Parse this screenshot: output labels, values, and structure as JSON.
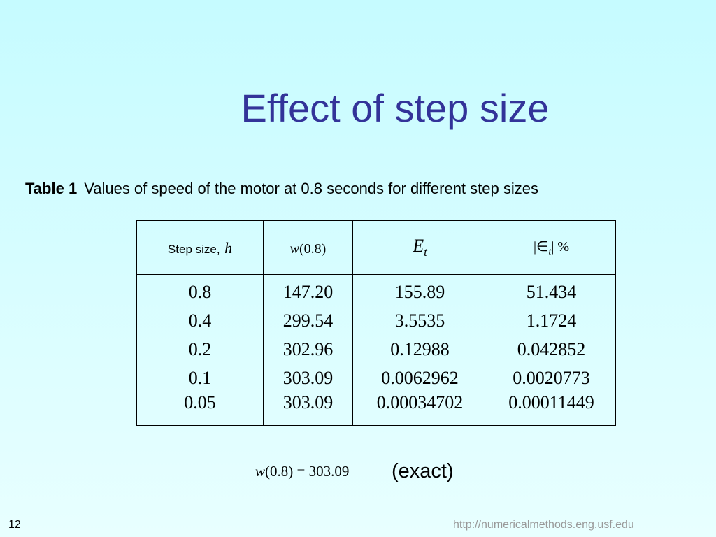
{
  "title": "Effect of step size",
  "caption": {
    "label": "Table 1",
    "text": "Values of speed of the motor at 0.8 seconds for different step sizes"
  },
  "table": {
    "columns": [
      {
        "label": "Step size,",
        "symbol": "h"
      },
      {
        "symbol": "w",
        "argument": "(0.8)"
      },
      {
        "symbol": "E",
        "subscript": "t"
      },
      {
        "prefix": "|∈",
        "subscript": "t",
        "suffix": "| %"
      }
    ],
    "rows": [
      [
        "0.8",
        "147.20",
        "155.89",
        "51.434"
      ],
      [
        "0.4",
        "299.54",
        "3.5535",
        "1.1724"
      ],
      [
        "0.2",
        "302.96",
        "0.12988",
        "0.042852"
      ],
      [
        "0.1",
        "303.09",
        "0.0062962",
        "0.0020773"
      ],
      [
        "0.05",
        "303.09",
        "0.00034702",
        "0.00011449"
      ]
    ]
  },
  "exact": {
    "symbol": "w",
    "argument": "(0.8)",
    "equals": "=",
    "value": "303.09",
    "note": "(exact)"
  },
  "footer": {
    "page": "12",
    "url": "http://numericalmethods.eng.usf.edu"
  }
}
